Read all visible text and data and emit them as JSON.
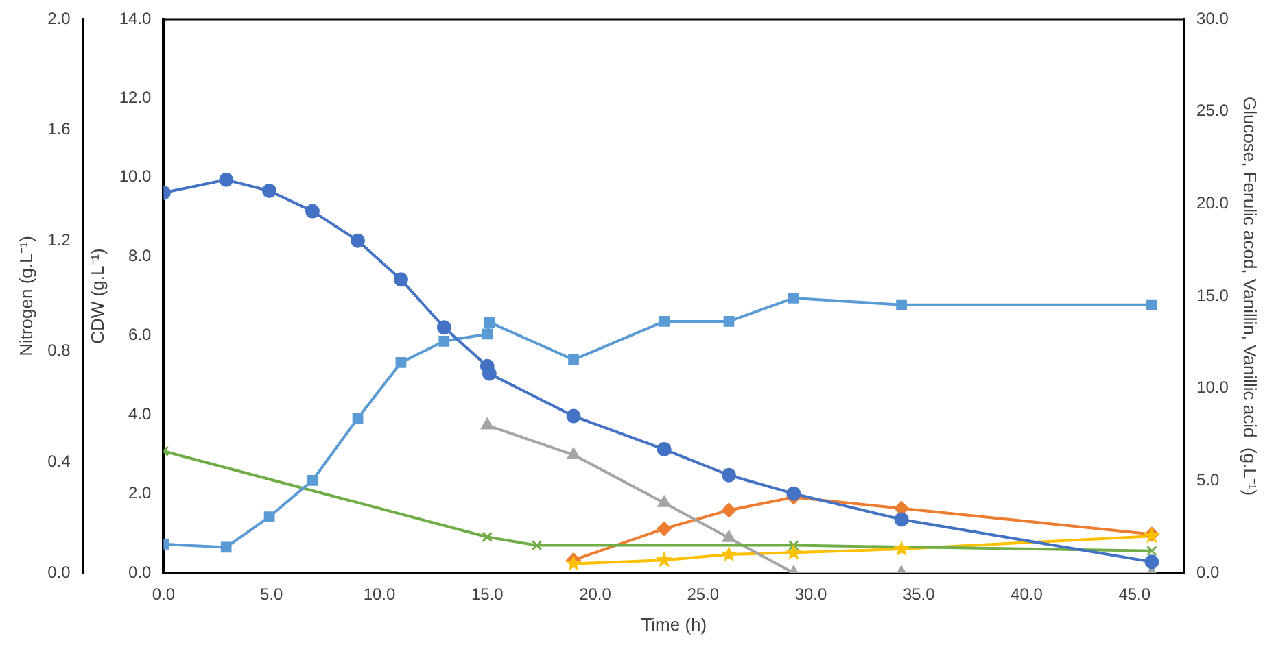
{
  "chart_data": {
    "type": "line",
    "xlabel": "Time (h)",
    "ylabel": "CDW (g.L⁻¹)",
    "y2label": "Glucose, Ferulic acod, Vanillin, Vanillic acid  (g.L⁻¹)",
    "y3label": "Nitrogen (g.L⁻¹)",
    "xlim": [
      0,
      47.3
    ],
    "xticks": [
      {
        "value": 0,
        "label": "0.0"
      },
      {
        "value": 5,
        "label": "5.0"
      },
      {
        "value": 10,
        "label": "10.0"
      },
      {
        "value": 15,
        "label": "15.0"
      },
      {
        "value": 20,
        "label": "20.0"
      },
      {
        "value": 25,
        "label": "25.0"
      },
      {
        "value": 30,
        "label": "30.0"
      },
      {
        "value": 35,
        "label": "35.0"
      },
      {
        "value": 40,
        "label": "40.0"
      },
      {
        "value": 45,
        "label": "45.0"
      }
    ],
    "ylim": [
      0,
      14
    ],
    "yticks": [
      {
        "value": 0,
        "label": "0.0"
      },
      {
        "value": 2,
        "label": "2.0"
      },
      {
        "value": 4,
        "label": "4.0"
      },
      {
        "value": 6,
        "label": "6.0"
      },
      {
        "value": 8,
        "label": "8.0"
      },
      {
        "value": 10,
        "label": "10.0"
      },
      {
        "value": 12,
        "label": "12.0"
      },
      {
        "value": 14,
        "label": "14.0"
      }
    ],
    "y2lim": [
      0,
      30
    ],
    "y2ticks": [
      {
        "value": 0,
        "label": "0.0"
      },
      {
        "value": 5,
        "label": "5.0"
      },
      {
        "value": 10,
        "label": "10.0"
      },
      {
        "value": 15,
        "label": "15.0"
      },
      {
        "value": 20,
        "label": "20.0"
      },
      {
        "value": 25,
        "label": "25.0"
      },
      {
        "value": 30,
        "label": "30.0"
      }
    ],
    "y3lim": [
      0,
      2
    ],
    "y3ticks": [
      {
        "value": 0,
        "label": "0.0"
      },
      {
        "value": 0.4,
        "label": "0.4"
      },
      {
        "value": 0.8,
        "label": "0.8"
      },
      {
        "value": 1.2,
        "label": "1.2"
      },
      {
        "value": 1.6,
        "label": "1.6"
      },
      {
        "value": 2,
        "label": "2.0"
      }
    ],
    "grid": false,
    "legend": false,
    "line_style": "solid",
    "series": [
      {
        "color": "#4472c4",
        "axis": "y2",
        "marker": "circle",
        "x": [
          0,
          2.9,
          4.9,
          6.9,
          9.0,
          11.0,
          13.0,
          15.0,
          15.1,
          19.0,
          23.2,
          26.2,
          29.2,
          34.2,
          45.8
        ],
        "values": [
          20.6,
          21.3,
          20.7,
          19.6,
          18.0,
          15.9,
          13.3,
          11.2,
          10.8,
          8.5,
          6.7,
          5.3,
          4.3,
          2.9,
          0.6
        ]
      },
      {
        "color": "#5b9bd5",
        "axis": "y",
        "marker": "square",
        "x": [
          0,
          2.9,
          4.9,
          6.9,
          9.0,
          11.0,
          13.0,
          15.0,
          15.1,
          19.0,
          23.2,
          26.2,
          29.2,
          34.2,
          45.8
        ],
        "values": [
          0.73,
          0.65,
          1.42,
          2.34,
          3.91,
          5.32,
          5.86,
          6.04,
          6.34,
          5.39,
          6.36,
          6.36,
          6.95,
          6.78,
          6.78
        ]
      },
      {
        "color": "#70ad47",
        "axis": "y3",
        "marker": "cross",
        "x": [
          0,
          15.0,
          17.3,
          29.2,
          45.8
        ],
        "values": [
          0.44,
          0.13,
          0.1,
          0.1,
          0.08
        ]
      },
      {
        "color": "#a5a5a5",
        "axis": "y2",
        "marker": "triangle",
        "x": [
          15.0,
          19.0,
          23.2,
          26.2,
          29.2,
          34.2,
          45.8
        ],
        "values": [
          8.0,
          6.4,
          3.8,
          1.9,
          0.0,
          0.0,
          0.0
        ]
      },
      {
        "color": "#ed7d31",
        "axis": "y2",
        "marker": "diamond",
        "x": [
          19.0,
          23.2,
          26.2,
          29.2,
          34.2,
          45.8
        ],
        "values": [
          0.7,
          2.4,
          3.4,
          4.1,
          3.5,
          2.1
        ]
      },
      {
        "color": "#ffc000",
        "axis": "y2",
        "marker": "star",
        "x": [
          19.0,
          23.2,
          26.2,
          29.2,
          34.2,
          45.8
        ],
        "values": [
          0.5,
          0.7,
          1.0,
          1.1,
          1.3,
          2.0
        ]
      }
    ]
  }
}
